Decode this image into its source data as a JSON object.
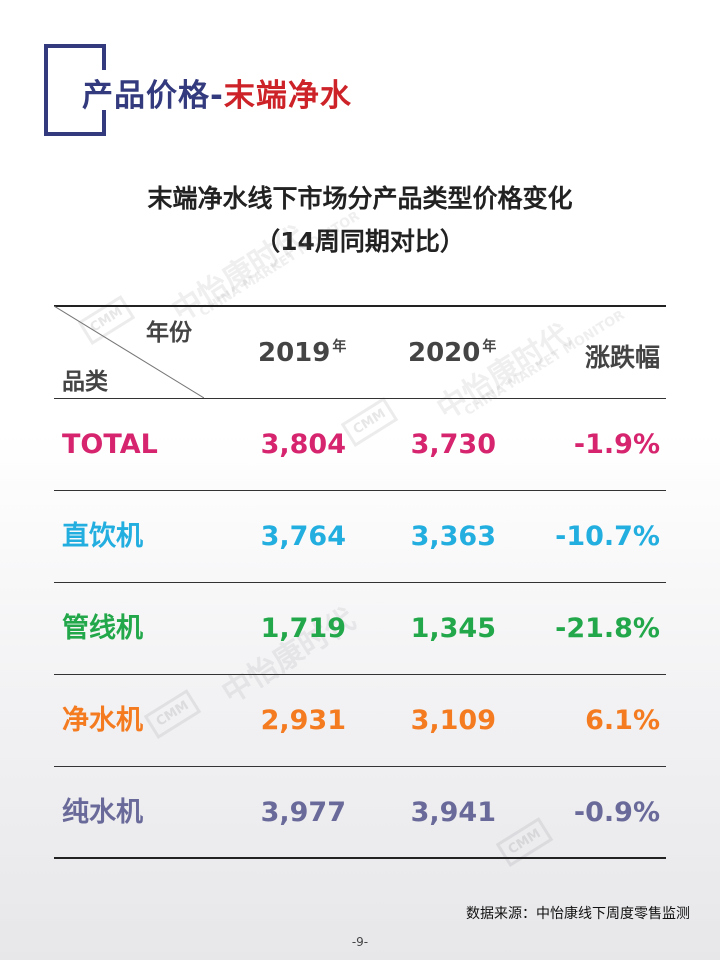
{
  "page_title": {
    "part1": "产品价格-",
    "part2": "末端净水"
  },
  "table_title": {
    "line1": "末端净水线下市场分产品类型价格变化",
    "line2": "（14周同期对比）"
  },
  "header": {
    "diag_top": "年份",
    "diag_bottom": "品类",
    "col_2019": "2019",
    "col_2020": "2020",
    "year_suffix": "年",
    "col_change": "涨跌幅"
  },
  "rows": [
    {
      "category": "TOTAL",
      "v2019": "3,804",
      "v2020": "3,730",
      "change": "-1.9%",
      "color": "#d6246e"
    },
    {
      "category": "直饮机",
      "v2019": "3,764",
      "v2020": "3,363",
      "change": "-10.7%",
      "color": "#23aee0"
    },
    {
      "category": "管线机",
      "v2019": "1,719",
      "v2020": "1,345",
      "change": "-21.8%",
      "color": "#22a84a"
    },
    {
      "category": "净水机",
      "v2019": "2,931",
      "v2020": "3,109",
      "change": "6.1%",
      "color": "#f47b20"
    },
    {
      "category": "纯水机",
      "v2019": "3,977",
      "v2020": "3,941",
      "change": "-0.9%",
      "color": "#6a6a9a"
    }
  ],
  "watermark": {
    "cn": "中怡康时代",
    "en": "CHINA MARKET MONITOR",
    "logo": "CMM"
  },
  "source": "数据来源：中怡康线下周度零售监测",
  "page_number": "-9-",
  "colors": {
    "title_navy": "#333a7d",
    "title_red": "#cc2228"
  }
}
